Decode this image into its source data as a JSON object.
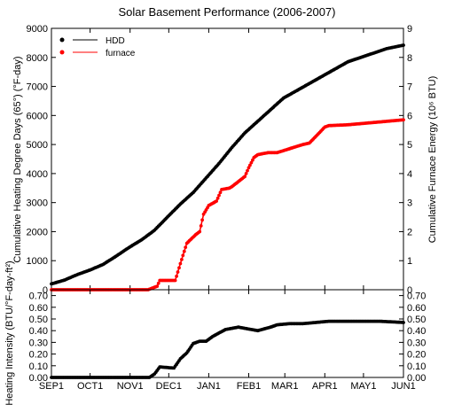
{
  "chart_data": [
    {
      "type": "line",
      "title": "Solar Basement Performance (2006-2007)",
      "ylabel_left": "Cumulative Heating Degree Days (65°) (°F-day)",
      "ylabel_right": "Cumulative Furnace Energy (10⁶ BTU)",
      "ylim_left": [
        0,
        9000
      ],
      "ylim_right": [
        0,
        9
      ],
      "yticks_left": [
        "0",
        "1000",
        "2000",
        "3000",
        "4000",
        "5000",
        "6000",
        "7000",
        "8000",
        "9000"
      ],
      "yticks_right": [
        "0",
        "1",
        "2",
        "3",
        "4",
        "5",
        "6",
        "7",
        "8",
        "9"
      ],
      "legend_position": "top-left",
      "grid": false,
      "x_unit": "days since SEP1",
      "series": [
        {
          "name": "HDD",
          "axis": "left",
          "color": "#000000",
          "x": [
            0,
            10,
            20,
            30,
            40,
            50,
            60,
            70,
            80,
            91,
            100,
            110,
            120,
            130,
            140,
            150,
            160,
            170,
            180,
            190,
            200,
            210,
            220,
            230,
            240,
            250,
            260,
            273
          ],
          "y": [
            200,
            330,
            520,
            680,
            870,
            1150,
            1450,
            1720,
            2050,
            2550,
            2950,
            3350,
            3850,
            4350,
            4900,
            5400,
            5800,
            6200,
            6600,
            6850,
            7100,
            7350,
            7600,
            7850,
            8000,
            8150,
            8300,
            8420
          ]
        },
        {
          "name": "furnace",
          "axis": "right",
          "color": "#ff0000",
          "x": [
            0,
            75,
            82,
            84,
            96,
            100,
            105,
            112,
            115,
            118,
            122,
            128,
            132,
            138,
            140,
            150,
            153,
            157,
            160,
            168,
            175,
            195,
            200,
            212,
            215,
            230,
            273
          ],
          "y": [
            0,
            0,
            0.12,
            0.32,
            0.32,
            0.9,
            1.6,
            1.9,
            2.0,
            2.6,
            2.9,
            3.05,
            3.45,
            3.5,
            3.55,
            3.9,
            4.2,
            4.55,
            4.65,
            4.72,
            4.72,
            5.0,
            5.05,
            5.6,
            5.65,
            5.68,
            5.85
          ]
        }
      ]
    },
    {
      "type": "line",
      "ylabel": "Heating Intensity (BTU/°F-day-ft²)",
      "ylim": [
        0,
        0.75
      ],
      "yticks": [
        "0.00",
        "0.10",
        "0.20",
        "0.30",
        "0.40",
        "0.50",
        "0.60",
        "0.70"
      ],
      "xticks": [
        "SEP1",
        "OCT1",
        "NOV1",
        "DEC1",
        "JAN1",
        "FEB1",
        "MAR1",
        "APR1",
        "MAY1",
        "JUN1"
      ],
      "xtick_days": [
        0,
        30,
        61,
        91,
        122,
        153,
        181,
        212,
        242,
        273
      ],
      "x_unit": "days since SEP1",
      "grid": false,
      "series": [
        {
          "color": "#000000",
          "x": [
            0,
            76,
            80,
            84,
            95,
            100,
            105,
            110,
            115,
            120,
            125,
            135,
            140,
            145,
            150,
            155,
            160,
            170,
            175,
            185,
            195,
            205,
            215,
            225,
            240,
            255,
            273
          ],
          "y": [
            0,
            0,
            0.03,
            0.09,
            0.08,
            0.16,
            0.21,
            0.29,
            0.31,
            0.31,
            0.35,
            0.41,
            0.42,
            0.43,
            0.42,
            0.41,
            0.4,
            0.43,
            0.45,
            0.46,
            0.46,
            0.47,
            0.48,
            0.48,
            0.48,
            0.48,
            0.47
          ]
        }
      ]
    }
  ]
}
